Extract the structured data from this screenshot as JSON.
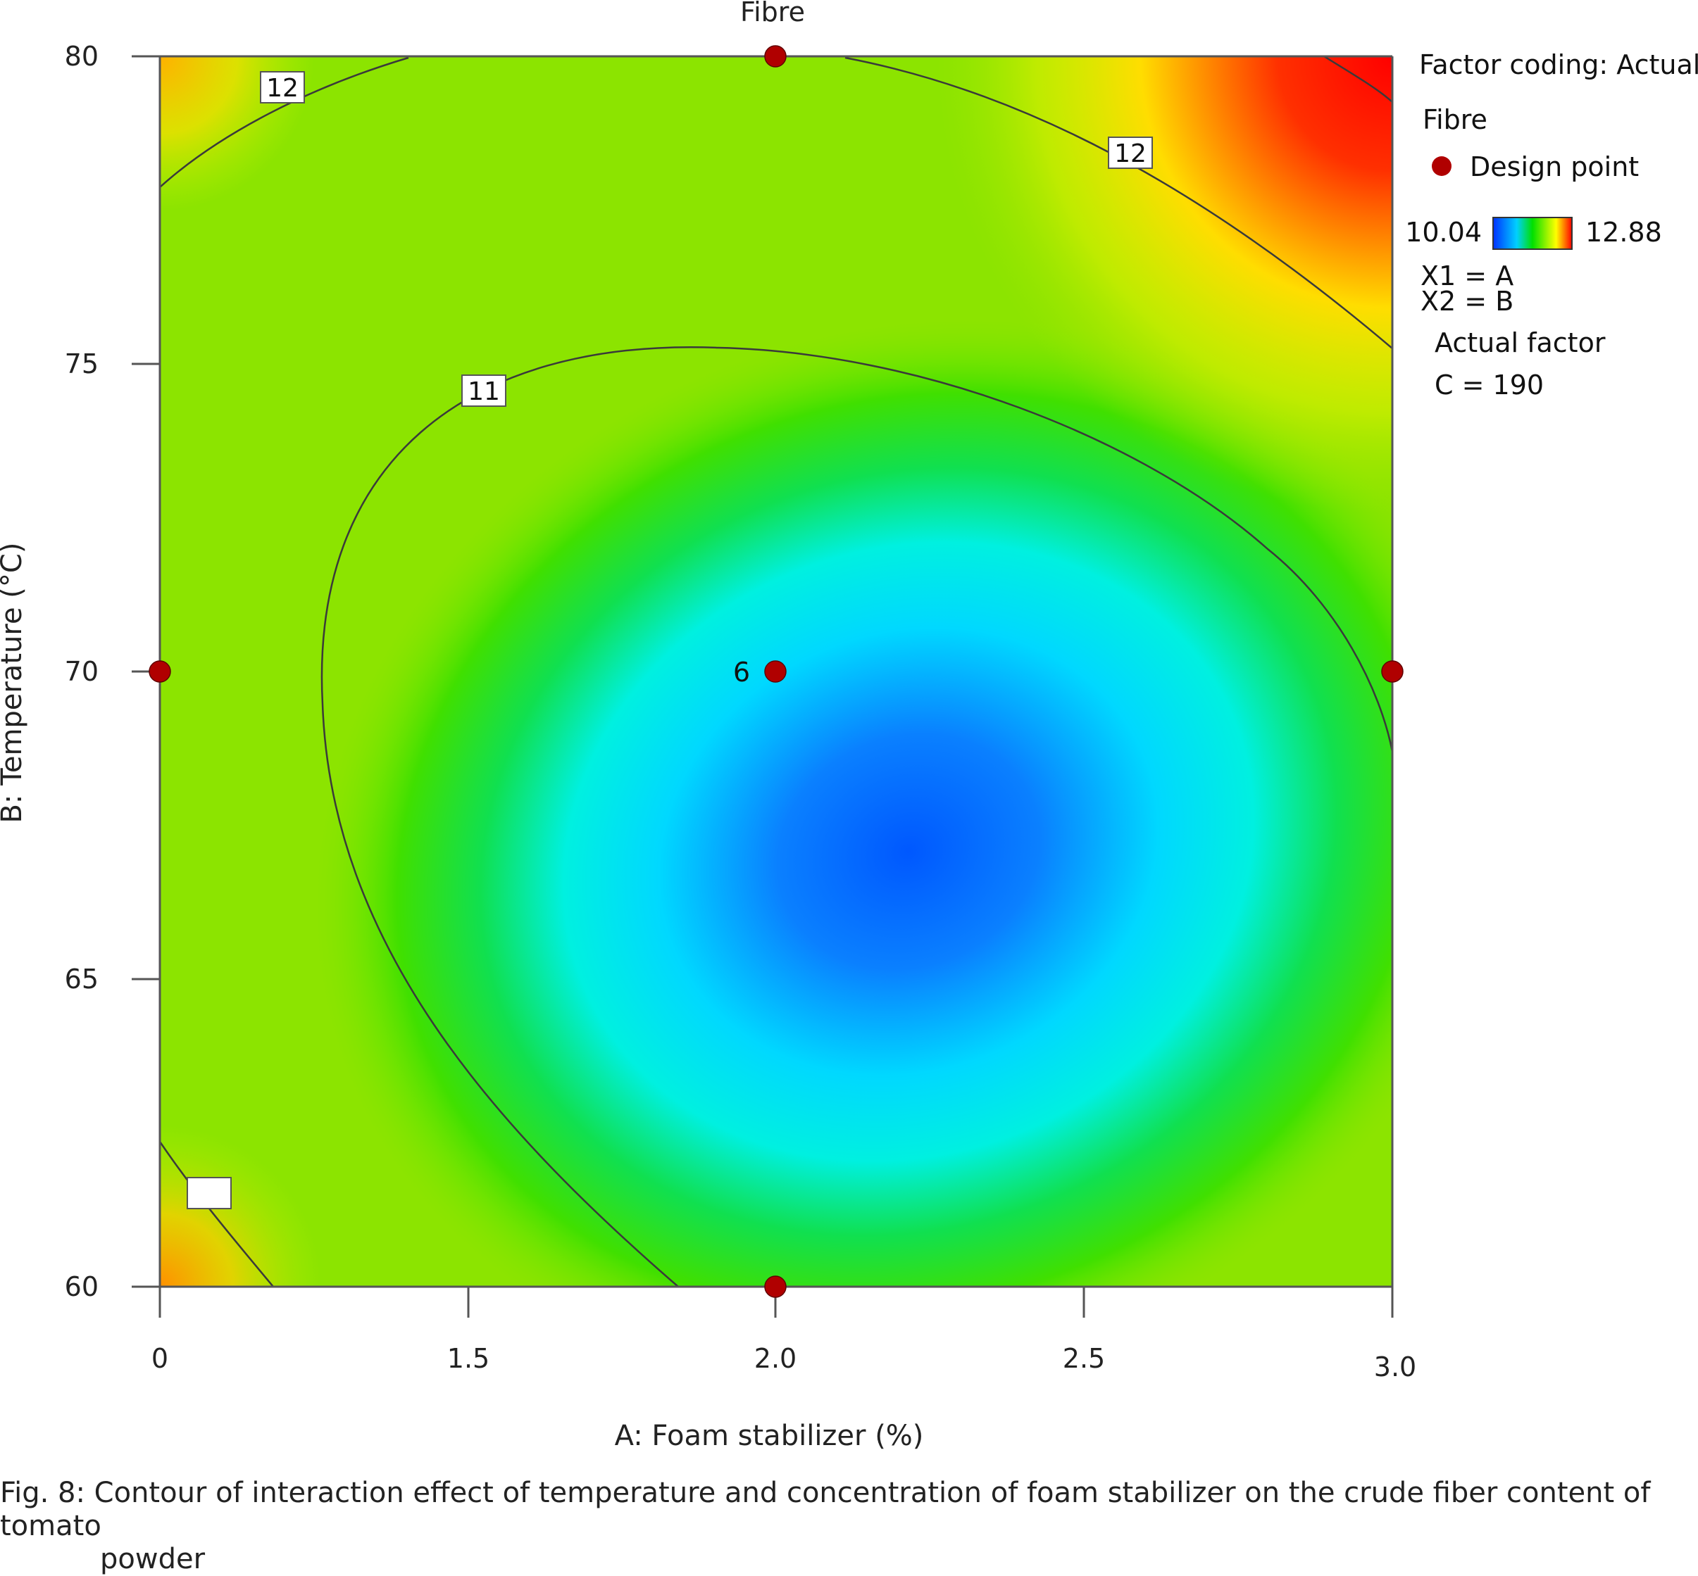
{
  "chart_data": {
    "type": "heatmap",
    "subtype": "contour",
    "title": "Fibre",
    "xlabel": "A: Foam stabilizer (%)",
    "ylabel": "B: Temperature (°C)",
    "xticks": [
      {
        "value": 0.0,
        "label": "0"
      },
      {
        "value": 1.5,
        "label": "1.5"
      },
      {
        "value": 2.0,
        "label": "2.0"
      },
      {
        "value": 2.5,
        "label": "2.5"
      },
      {
        "value": 3.0,
        "label": "3.0"
      }
    ],
    "yticks": [
      {
        "value": 60,
        "label": "60"
      },
      {
        "value": 65,
        "label": "65"
      },
      {
        "value": 70,
        "label": "70"
      },
      {
        "value": 75,
        "label": "75"
      },
      {
        "value": 80,
        "label": "80"
      }
    ],
    "ylim": [
      60,
      80
    ],
    "response": "Fibre",
    "color_scale": {
      "min": 10.04,
      "max": 12.88,
      "min_label": "10.04",
      "max_label": "12.88",
      "colors": [
        "#0030ff",
        "#00ffff",
        "#00e000",
        "#ffff00",
        "#ff0000"
      ]
    },
    "contour_levels": [
      {
        "level": 11,
        "label": "11"
      },
      {
        "level": 12,
        "label": "12"
      }
    ],
    "design_points": [
      {
        "x": 2.0,
        "y": 80
      },
      {
        "x": 0.0,
        "y": 70
      },
      {
        "x": 2.0,
        "y": 70,
        "label": "6"
      },
      {
        "x": 3.0,
        "y": 70
      },
      {
        "x": 2.0,
        "y": 60
      }
    ],
    "legend": {
      "placement": "right",
      "factor_coding": "Factor coding: Actual",
      "response_name": "Fibre",
      "design_point_label": "Design point",
      "x1": "X1 = A",
      "x2": "X2 = B",
      "actual_factor_heading": "Actual factor",
      "actual_factor_value": "C = 190"
    }
  },
  "caption": {
    "line1": "Fig. 8: Contour of interaction effect of temperature and concentration of foam stabilizer on the crude fiber content of tomato",
    "line2": "powder"
  },
  "colors": {
    "design_point": "#b00000",
    "contour_line": "#3a3a3a",
    "axis": "#555555"
  }
}
